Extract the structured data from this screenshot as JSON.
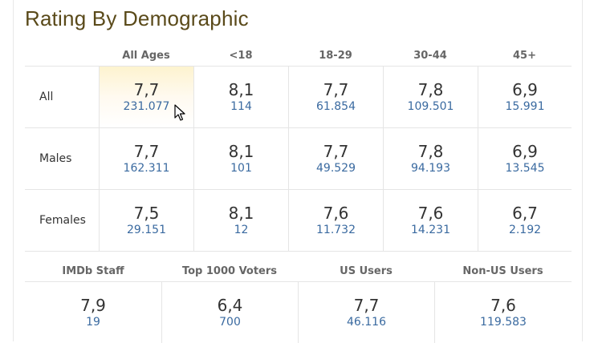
{
  "title": "Rating By Demographic",
  "columns": [
    "All Ages",
    "<18",
    "18-29",
    "30-44",
    "45+"
  ],
  "rows": [
    {
      "label": "All",
      "cells": [
        {
          "rating": "7,7",
          "votes": "231.077"
        },
        {
          "rating": "8,1",
          "votes": "114"
        },
        {
          "rating": "7,7",
          "votes": "61.854"
        },
        {
          "rating": "7,8",
          "votes": "109.501"
        },
        {
          "rating": "6,9",
          "votes": "15.991"
        }
      ]
    },
    {
      "label": "Males",
      "cells": [
        {
          "rating": "7,7",
          "votes": "162.311"
        },
        {
          "rating": "8,1",
          "votes": "101"
        },
        {
          "rating": "7,7",
          "votes": "49.529"
        },
        {
          "rating": "7,8",
          "votes": "94.193"
        },
        {
          "rating": "6,9",
          "votes": "13.545"
        }
      ]
    },
    {
      "label": "Females",
      "cells": [
        {
          "rating": "7,5",
          "votes": "29.151"
        },
        {
          "rating": "8,1",
          "votes": "12"
        },
        {
          "rating": "7,6",
          "votes": "11.732"
        },
        {
          "rating": "7,6",
          "votes": "14.231"
        },
        {
          "rating": "6,7",
          "votes": "2.192"
        }
      ]
    }
  ],
  "bottom": {
    "columns": [
      "IMDb Staff",
      "Top 1000 Voters",
      "US Users",
      "Non-US Users"
    ],
    "cells": [
      {
        "rating": "7,9",
        "votes": "19"
      },
      {
        "rating": "6,4",
        "votes": "700"
      },
      {
        "rating": "7,7",
        "votes": "46.116"
      },
      {
        "rating": "7,6",
        "votes": "119.583"
      }
    ]
  },
  "colors": {
    "title": "#5a4a1a",
    "link": "#3a6aa0",
    "highlight": "#fdf3cf"
  }
}
